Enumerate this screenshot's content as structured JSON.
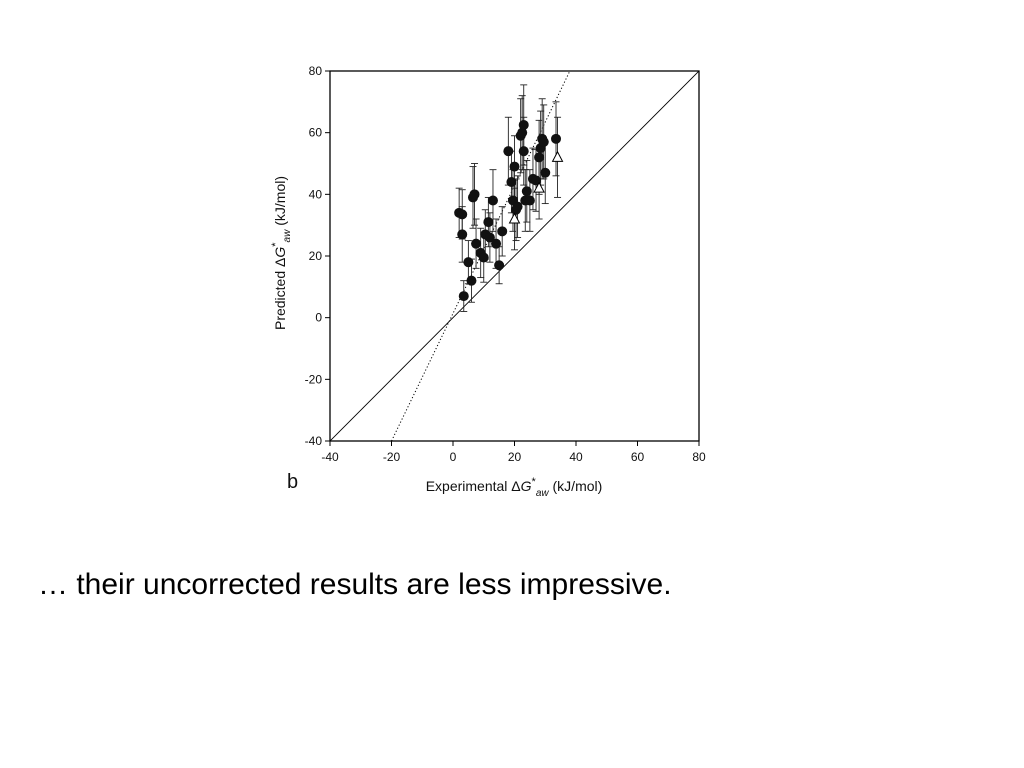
{
  "slide": {
    "caption": "… their uncorrected results are less impressive."
  },
  "chart_data": {
    "type": "scatter",
    "title": "",
    "panel_label": "b",
    "xlabel": {
      "prefix": "Experimental Δ",
      "symbol": "G",
      "sup": "*",
      "sub": "aw",
      "suffix": " (kJ/mol)"
    },
    "ylabel": {
      "prefix": "Predicted Δ",
      "symbol": "G",
      "sup": "*",
      "sub": "aw",
      "suffix": " (kJ/mol)"
    },
    "xlim": [
      -40,
      80
    ],
    "ylim": [
      -40,
      80
    ],
    "xticks": [
      -40,
      -20,
      0,
      20,
      40,
      60,
      80
    ],
    "yticks": [
      -40,
      -20,
      0,
      20,
      40,
      60,
      80
    ],
    "grid": false,
    "reference_lines": [
      {
        "style": "solid",
        "points": [
          [
            -40,
            -40
          ],
          [
            80,
            80
          ]
        ]
      },
      {
        "style": "dotted",
        "points": [
          [
            -20,
            -40
          ],
          [
            38,
            80
          ]
        ]
      }
    ],
    "series": [
      {
        "marker": "filled-circle",
        "points": [
          {
            "x": 2,
            "y": 34,
            "err": 8
          },
          {
            "x": 3,
            "y": 33.5,
            "err": 8
          },
          {
            "x": 3,
            "y": 27,
            "err": 9
          },
          {
            "x": 3.5,
            "y": 7,
            "err": 5
          },
          {
            "x": 5,
            "y": 18,
            "err": 7
          },
          {
            "x": 6,
            "y": 12,
            "err": 7
          },
          {
            "x": 6.5,
            "y": 39,
            "err": 10
          },
          {
            "x": 7,
            "y": 40,
            "err": 10
          },
          {
            "x": 7.5,
            "y": 24,
            "err": 8
          },
          {
            "x": 9,
            "y": 21,
            "err": 8
          },
          {
            "x": 10,
            "y": 19.5,
            "err": 8
          },
          {
            "x": 10.5,
            "y": 27,
            "err": 8
          },
          {
            "x": 11.5,
            "y": 31,
            "err": 8
          },
          {
            "x": 12,
            "y": 26,
            "err": 8
          },
          {
            "x": 13,
            "y": 38,
            "err": 10
          },
          {
            "x": 14,
            "y": 24,
            "err": 8
          },
          {
            "x": 15,
            "y": 17,
            "err": 6
          },
          {
            "x": 16,
            "y": 28,
            "err": 8
          },
          {
            "x": 18,
            "y": 54,
            "err": 11
          },
          {
            "x": 19,
            "y": 44,
            "err": 10
          },
          {
            "x": 19.5,
            "y": 38,
            "err": 10
          },
          {
            "x": 20,
            "y": 49,
            "err": 10
          },
          {
            "x": 20.5,
            "y": 35,
            "err": 10
          },
          {
            "x": 21,
            "y": 36,
            "err": 10
          },
          {
            "x": 22,
            "y": 59,
            "err": 12
          },
          {
            "x": 22.5,
            "y": 60,
            "err": 12
          },
          {
            "x": 23,
            "y": 62.5,
            "err": 13
          },
          {
            "x": 23,
            "y": 54,
            "err": 11
          },
          {
            "x": 23.5,
            "y": 38,
            "err": 10
          },
          {
            "x": 24,
            "y": 41,
            "err": 10
          },
          {
            "x": 25,
            "y": 38,
            "err": 10
          },
          {
            "x": 26,
            "y": 45,
            "err": 10
          },
          {
            "x": 27,
            "y": 44.5,
            "err": 10
          },
          {
            "x": 28,
            "y": 52,
            "err": 12
          },
          {
            "x": 28.5,
            "y": 55,
            "err": 12
          },
          {
            "x": 29,
            "y": 58,
            "err": 13
          },
          {
            "x": 29.5,
            "y": 57,
            "err": 12
          },
          {
            "x": 30,
            "y": 47,
            "err": 10
          },
          {
            "x": 33.5,
            "y": 58,
            "err": 12
          }
        ]
      },
      {
        "marker": "open-triangle",
        "points": [
          {
            "x": 20,
            "y": 32,
            "err": 10
          },
          {
            "x": 28,
            "y": 42,
            "err": 10
          },
          {
            "x": 34,
            "y": 52,
            "err": 13
          }
        ]
      }
    ]
  }
}
